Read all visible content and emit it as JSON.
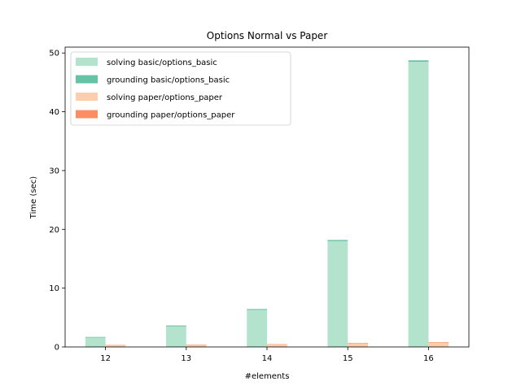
{
  "chart_data": {
    "type": "bar",
    "title": "Options Normal vs Paper",
    "xlabel": "#elements",
    "ylabel": "Time (sec)",
    "categories": [
      "12",
      "13",
      "14",
      "15",
      "16"
    ],
    "ylim": [
      0,
      51
    ],
    "yticks": [
      0,
      10,
      20,
      30,
      40,
      50
    ],
    "stacked": true,
    "grid": false,
    "legend_position": "top-left",
    "series": [
      {
        "name": "solving basic/options_basic",
        "group": "basic",
        "color": "#b3e2cd",
        "values": [
          1.6,
          3.5,
          6.3,
          18.0,
          48.5
        ]
      },
      {
        "name": "grounding basic/options_basic",
        "group": "basic",
        "color": "#66c2a5",
        "values": [
          0.1,
          0.15,
          0.15,
          0.2,
          0.25
        ]
      },
      {
        "name": "solving paper/options_paper",
        "group": "paper",
        "color": "#fdcdac",
        "values": [
          0.3,
          0.35,
          0.45,
          0.55,
          0.7
        ]
      },
      {
        "name": "grounding paper/options_paper",
        "group": "paper",
        "color": "#fc8d62",
        "values": [
          0.05,
          0.05,
          0.05,
          0.1,
          0.1
        ]
      }
    ]
  }
}
